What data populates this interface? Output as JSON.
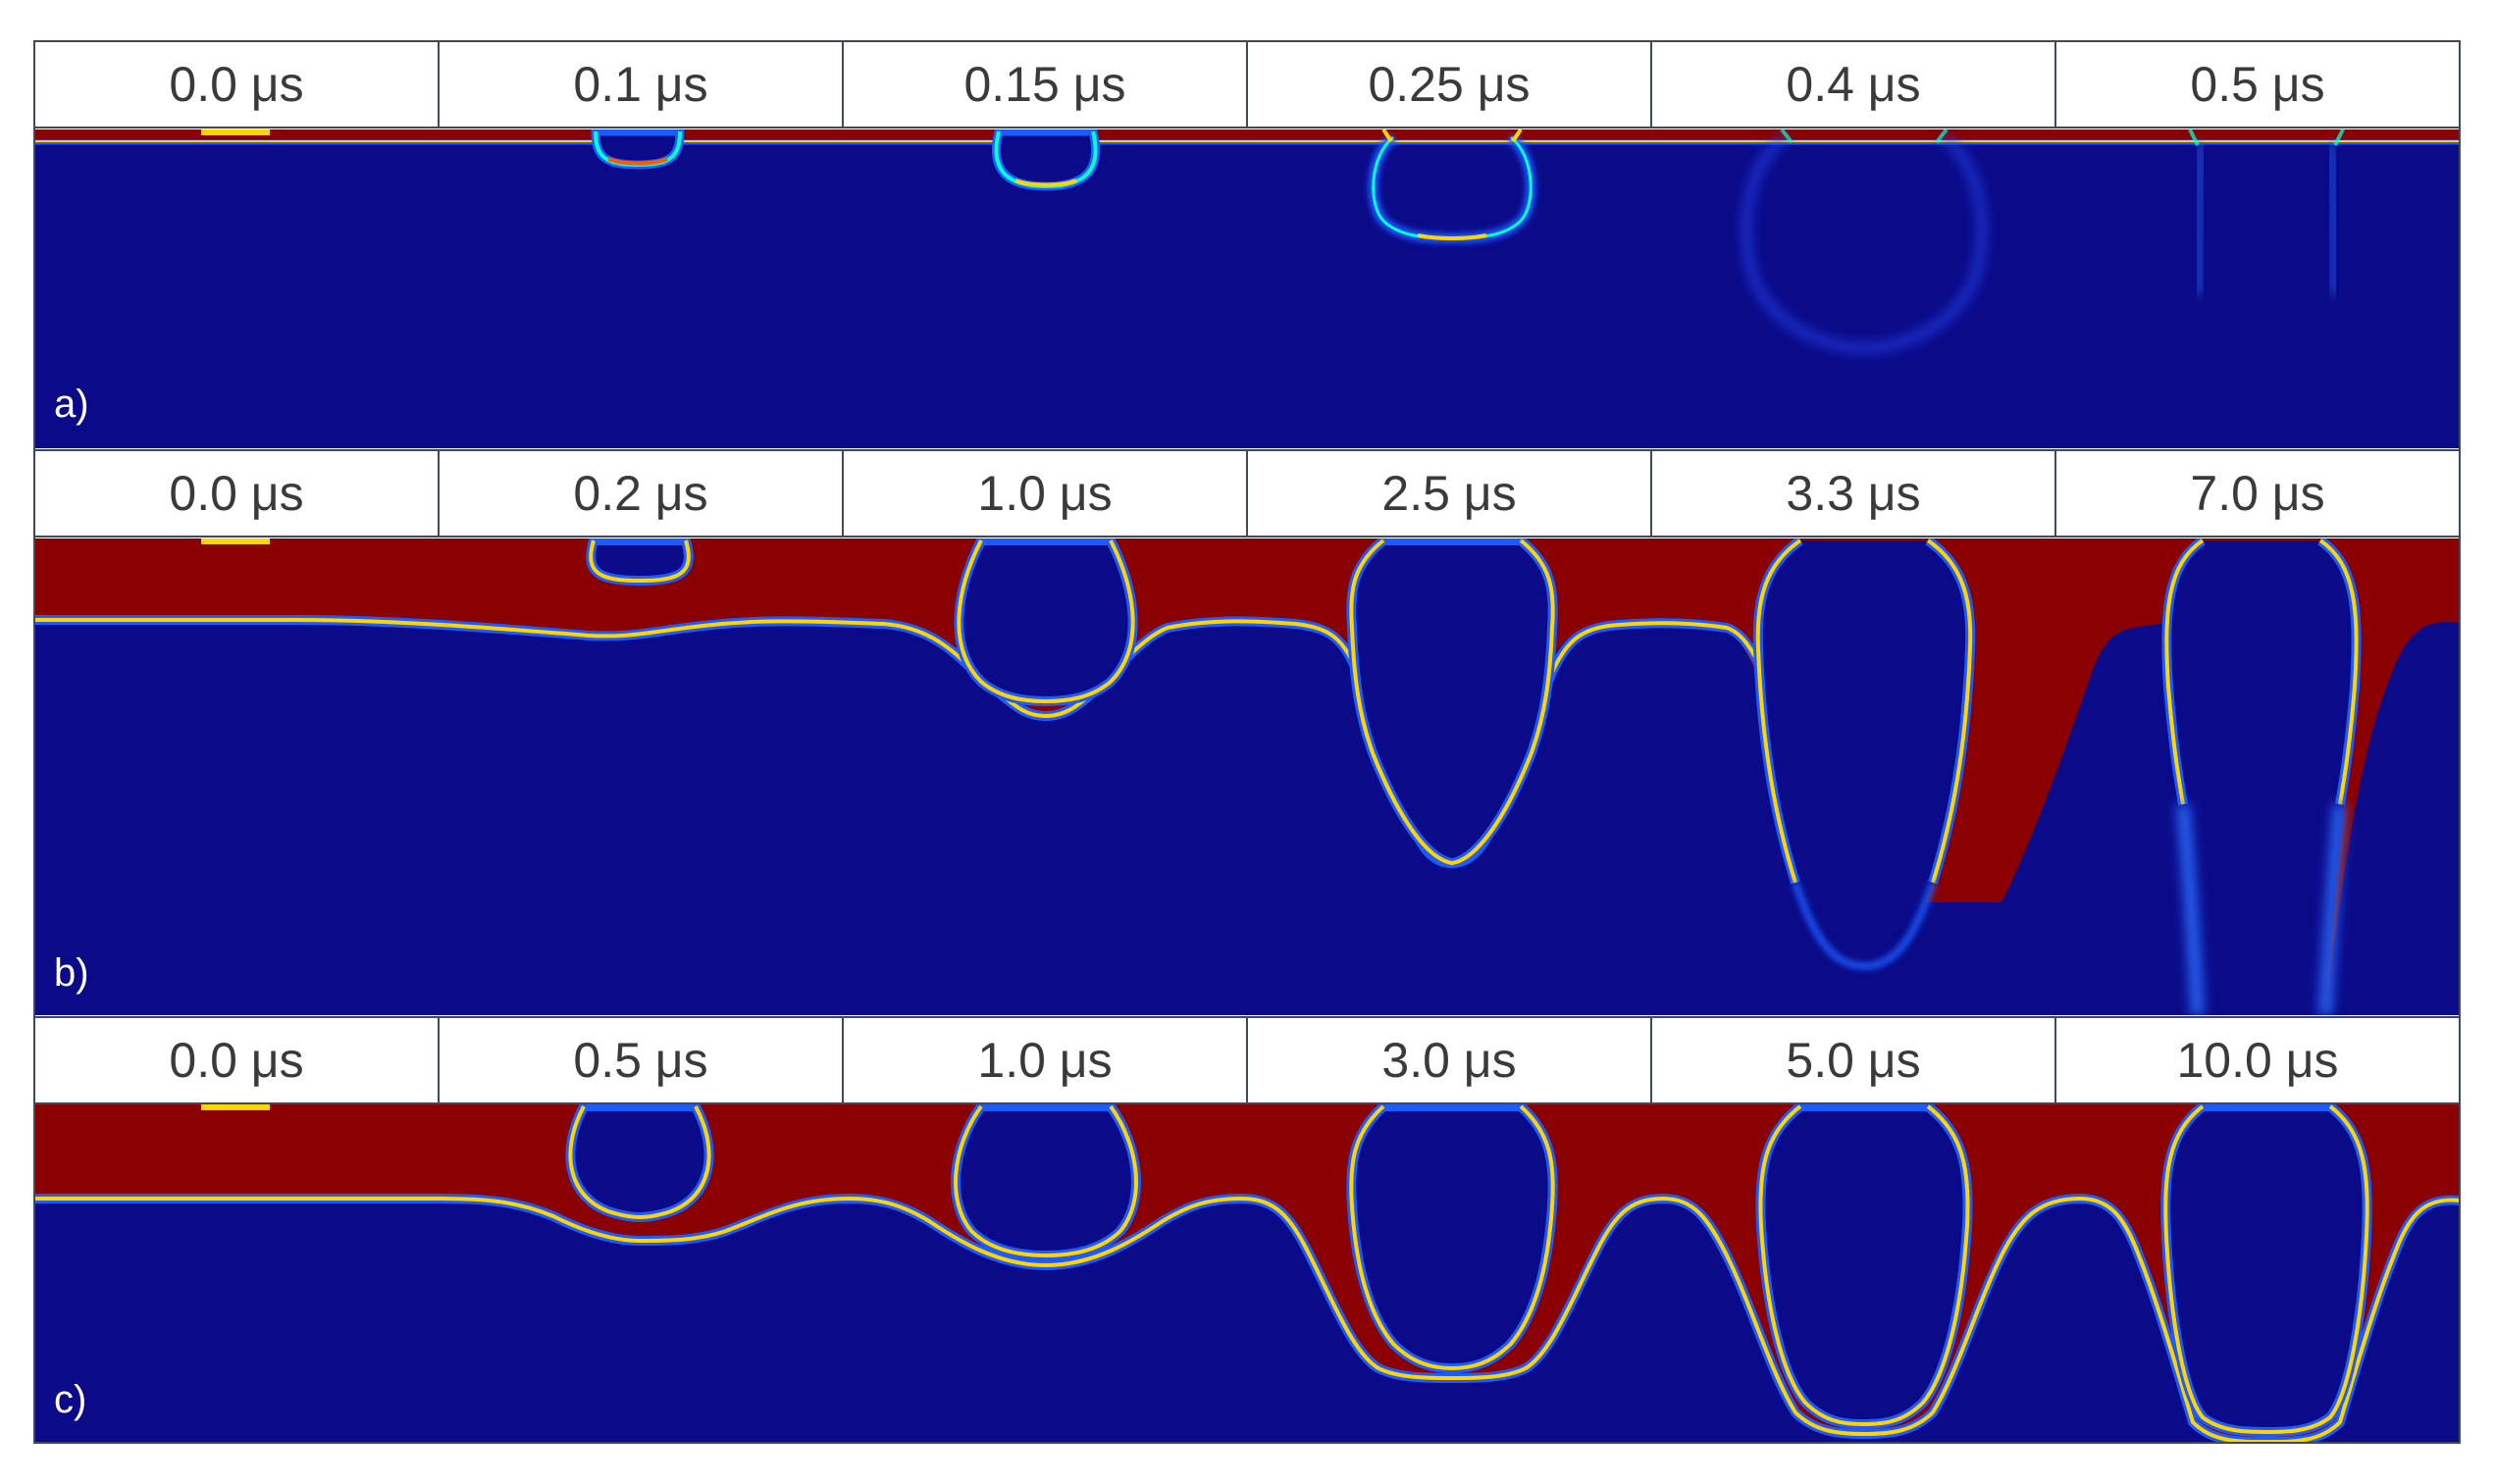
{
  "colors": {
    "background_field": "#0b0b8a",
    "melt_layer": "#8b0000",
    "interface_inner": "#ffd400",
    "interface_mid": "#00ffd2",
    "interface_outer": "#1c5cff",
    "header_fill": "#ffffff",
    "header_border": "#3e4a5c"
  },
  "panels": [
    {
      "label": "a)",
      "times": [
        "0.0 μs",
        "0.1 μs",
        "0.15 μs",
        "0.25 μs",
        "0.4 μs",
        "0.5 μs"
      ]
    },
    {
      "label": "b)",
      "times": [
        "0.0 μs",
        "0.2 μs",
        "1.0 μs",
        "2.5 μs",
        "3.3 μs",
        "7.0 μs"
      ]
    },
    {
      "label": "c)",
      "times": [
        "0.0 μs",
        "0.5 μs",
        "1.0 μs",
        "3.0 μs",
        "5.0 μs",
        "10.0 μs"
      ]
    }
  ]
}
